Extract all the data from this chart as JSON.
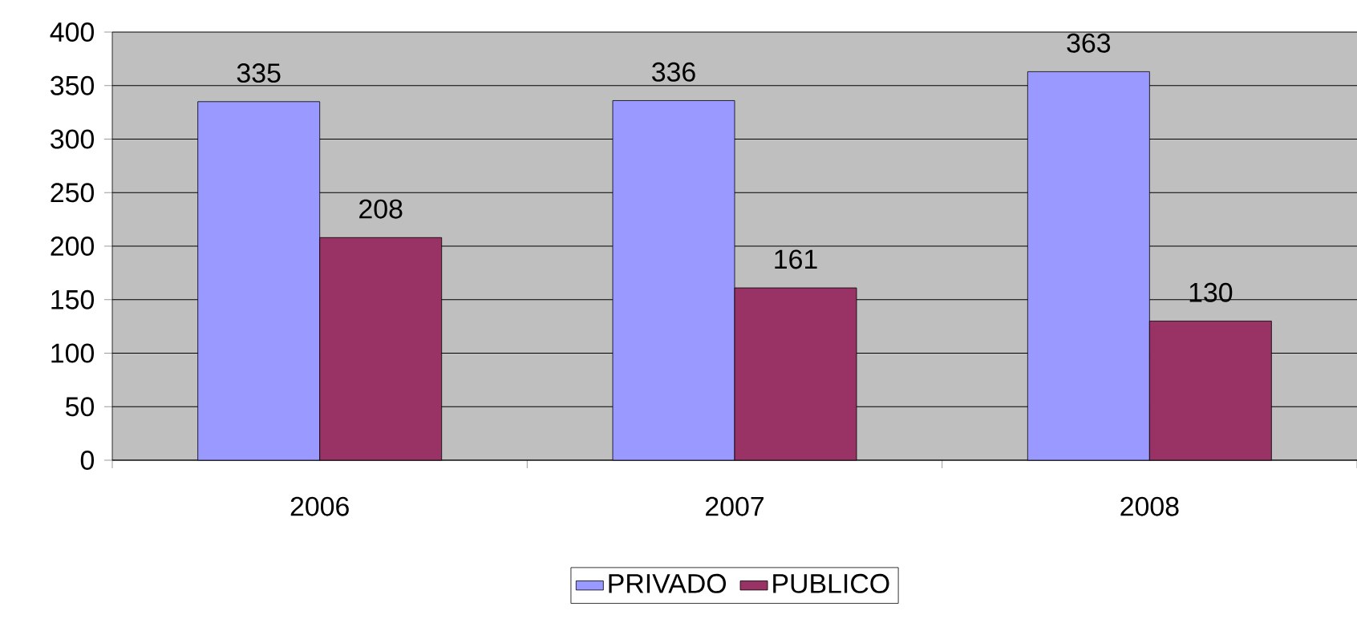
{
  "chart_data": {
    "type": "bar",
    "categories": [
      "2006",
      "2007",
      "2008"
    ],
    "series": [
      {
        "name": "PRIVADO",
        "color": "#9999ff",
        "values": [
          335,
          336,
          363
        ]
      },
      {
        "name": "PUBLICO",
        "color": "#993366",
        "values": [
          208,
          161,
          130
        ]
      }
    ],
    "ylim": [
      0,
      400
    ],
    "yticks": [
      0,
      50,
      100,
      150,
      200,
      250,
      300,
      350,
      400
    ],
    "grid": "y",
    "legend": "bottom",
    "data_labels": true
  }
}
